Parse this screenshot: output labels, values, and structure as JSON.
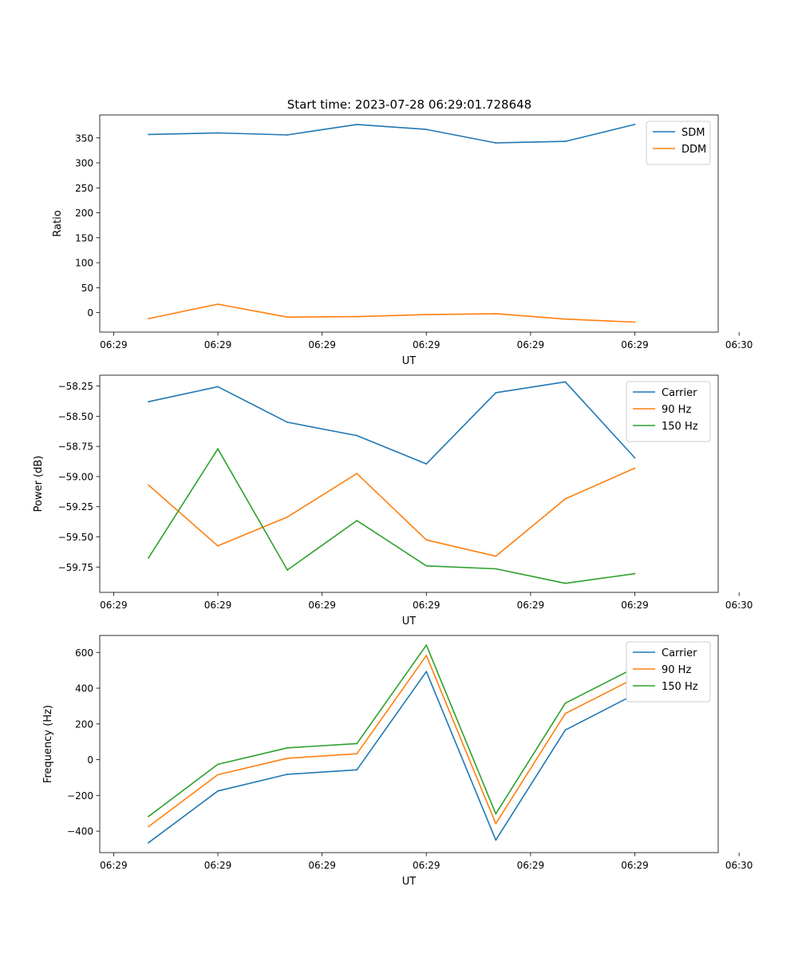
{
  "figure": {
    "title": "Start time: 2023-07-28 06:29:01.728648"
  },
  "chart_data": [
    {
      "type": "line",
      "ylabel": "Ratio",
      "xlabel": "UT",
      "x": [
        1,
        2,
        3,
        4,
        5,
        6,
        7,
        8
      ],
      "xlim": [
        0.3,
        9.2
      ],
      "xticks": [
        0.5,
        2,
        3.5,
        5,
        6.5,
        8,
        9.5
      ],
      "xtick_labels": [
        "06:29",
        "06:29",
        "06:29",
        "06:29",
        "06:29",
        "06:29",
        "06:30"
      ],
      "ylim": [
        -39,
        396
      ],
      "yticks": [
        0,
        50,
        100,
        150,
        200,
        250,
        300,
        350
      ],
      "ytick_labels": [
        "0",
        "50",
        "100",
        "150",
        "200",
        "250",
        "300",
        "350"
      ],
      "legend": "top-right",
      "series": [
        {
          "name": "SDM",
          "color": "#1f77b4",
          "values": [
            357,
            360,
            356,
            377,
            367,
            340,
            343,
            377
          ]
        },
        {
          "name": "DDM",
          "color": "#ff7f0e",
          "values": [
            -12,
            17,
            -9,
            -8,
            -4,
            -2,
            -13,
            -19
          ]
        }
      ]
    },
    {
      "type": "line",
      "ylabel": "Power (dB)",
      "xlabel": "UT",
      "x": [
        1,
        2,
        3,
        4,
        5,
        6,
        7,
        8
      ],
      "xlim": [
        0.3,
        9.2
      ],
      "xticks": [
        0.5,
        2,
        3.5,
        5,
        6.5,
        8,
        9.5
      ],
      "xtick_labels": [
        "06:29",
        "06:29",
        "06:29",
        "06:29",
        "06:29",
        "06:29",
        "06:30"
      ],
      "ylim": [
        -59.96,
        -58.16
      ],
      "yticks": [
        -59.75,
        -59.5,
        -59.25,
        -59.0,
        -58.75,
        -58.5,
        -58.25
      ],
      "ytick_labels": [
        "−59.75",
        "−59.50",
        "−59.25",
        "−59.00",
        "−58.75",
        "−58.50",
        "−58.25"
      ],
      "legend": "top-right",
      "series": [
        {
          "name": "Carrier",
          "color": "#1f77b4",
          "values": [
            -58.38,
            -58.255,
            -58.55,
            -58.66,
            -58.895,
            -58.305,
            -58.215,
            -58.845
          ]
        },
        {
          "name": "90 Hz",
          "color": "#ff7f0e",
          "values": [
            -59.07,
            -59.575,
            -59.335,
            -58.975,
            -59.525,
            -59.66,
            -59.185,
            -58.93
          ]
        },
        {
          "name": "150 Hz",
          "color": "#2ca02c",
          "values": [
            -59.675,
            -58.77,
            -59.775,
            -59.365,
            -59.74,
            -59.765,
            -59.885,
            -59.805
          ]
        }
      ]
    },
    {
      "type": "line",
      "ylabel": "Frequency (Hz)",
      "xlabel": "UT",
      "x": [
        1,
        2,
        3,
        4,
        5,
        6,
        7,
        8
      ],
      "xlim": [
        0.3,
        9.2
      ],
      "xticks": [
        0.5,
        2,
        3.5,
        5,
        6.5,
        8,
        9.5
      ],
      "xtick_labels": [
        "06:29",
        "06:29",
        "06:29",
        "06:29",
        "06:29",
        "06:29",
        "06:30"
      ],
      "ylim": [
        -520,
        695
      ],
      "yticks": [
        -400,
        -200,
        0,
        200,
        400,
        600
      ],
      "ytick_labels": [
        "−400",
        "−200",
        "0",
        "200",
        "400",
        "600"
      ],
      "legend": "top-right",
      "series": [
        {
          "name": "Carrier",
          "color": "#1f77b4",
          "values": [
            -465,
            -175,
            -82,
            -57,
            493,
            -450,
            166,
            366
          ]
        },
        {
          "name": "90 Hz",
          "color": "#ff7f0e",
          "values": [
            -375,
            -84,
            8,
            33,
            583,
            -358,
            258,
            456
          ]
        },
        {
          "name": "150 Hz",
          "color": "#2ca02c",
          "values": [
            -318,
            -26,
            66,
            90,
            641,
            -303,
            316,
            514
          ]
        }
      ]
    }
  ]
}
